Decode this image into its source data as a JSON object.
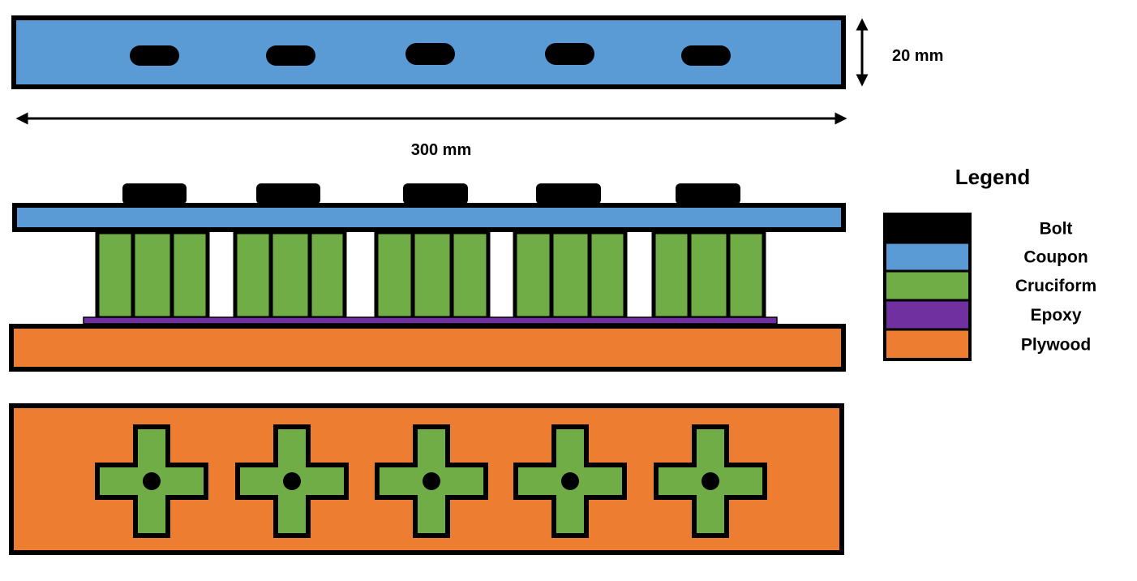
{
  "dimensions": {
    "height_label": "20 mm",
    "length_label": "300 mm"
  },
  "legend": {
    "title": "Legend",
    "items": [
      {
        "key": "bolt",
        "label": "Bolt",
        "color": "#000000"
      },
      {
        "key": "coupon",
        "label": "Coupon",
        "color": "#5B9BD5"
      },
      {
        "key": "cruciform",
        "label": "Cruciform",
        "color": "#70AD47"
      },
      {
        "key": "epoxy",
        "label": "Epoxy",
        "color": "#7030A0"
      },
      {
        "key": "plywood",
        "label": "Plywood",
        "color": "#ED7D31"
      }
    ]
  },
  "colors": {
    "outline": "#000000",
    "background": "#FFFFFF"
  }
}
